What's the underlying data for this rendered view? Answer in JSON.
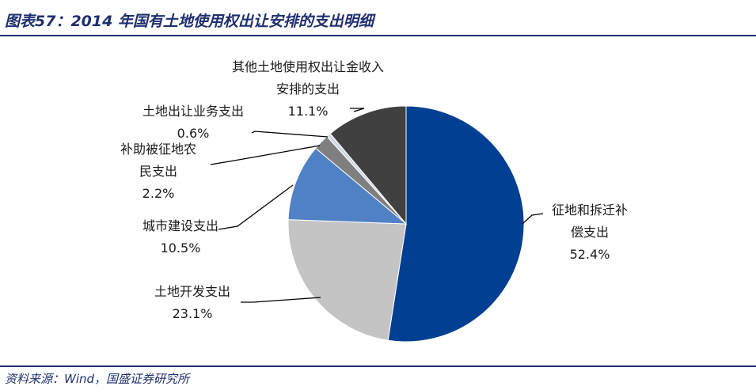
{
  "header": {
    "title": "图表57：2014 年国有土地使用权出让安排的支出明细"
  },
  "footer": {
    "source": "资料来源：Wind，国盛证券研究所"
  },
  "chart_data": {
    "type": "pie",
    "title": "",
    "slices": [
      {
        "label_lines": [
          "征地和拆迁补",
          "偿支出"
        ],
        "value": 52.4,
        "value_text": "52.4%",
        "color": "#003f92"
      },
      {
        "label_lines": [
          "土地开发支出"
        ],
        "value": 23.1,
        "value_text": "23.1%",
        "color": "#c4c4c4"
      },
      {
        "label_lines": [
          "城市建设支出"
        ],
        "value": 10.5,
        "value_text": "10.5%",
        "color": "#4f81c4"
      },
      {
        "label_lines": [
          "补助被征地农",
          "民支出"
        ],
        "value": 2.2,
        "value_text": "2.2%",
        "color": "#7f7f7f"
      },
      {
        "label_lines": [
          "土地出让业务支出"
        ],
        "value": 0.6,
        "value_text": "0.6%",
        "color": "#d0d9e6"
      },
      {
        "label_lines": [
          "其他土地使用权出让金收入",
          "安排的支出"
        ],
        "value": 11.1,
        "value_text": "11.1%",
        "color": "#404040"
      }
    ]
  }
}
